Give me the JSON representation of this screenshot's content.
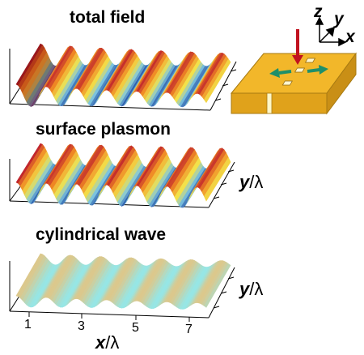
{
  "panels": [
    {
      "title": "total field",
      "style": "total"
    },
    {
      "title": "surface plasmon",
      "style": "sp"
    },
    {
      "title": "cylindrical wave",
      "style": "cyl"
    }
  ],
  "axes": {
    "y_label_var": "y",
    "y_label_unit": "λ",
    "x_label_var": "x",
    "x_label_unit": "λ",
    "x_ticks": [
      "1",
      "3",
      "5",
      "7"
    ]
  },
  "inset": {
    "axis_z": "z",
    "axis_y": "y",
    "axis_x": "x"
  },
  "colors": {
    "plate": "#f2b72a",
    "plate_edge": "#a77a12",
    "arrow_in": "#c1121f",
    "arrow_out": "#1f8f6a",
    "wave_red": "#c1272d",
    "wave_blue": "#2f5fae"
  }
}
